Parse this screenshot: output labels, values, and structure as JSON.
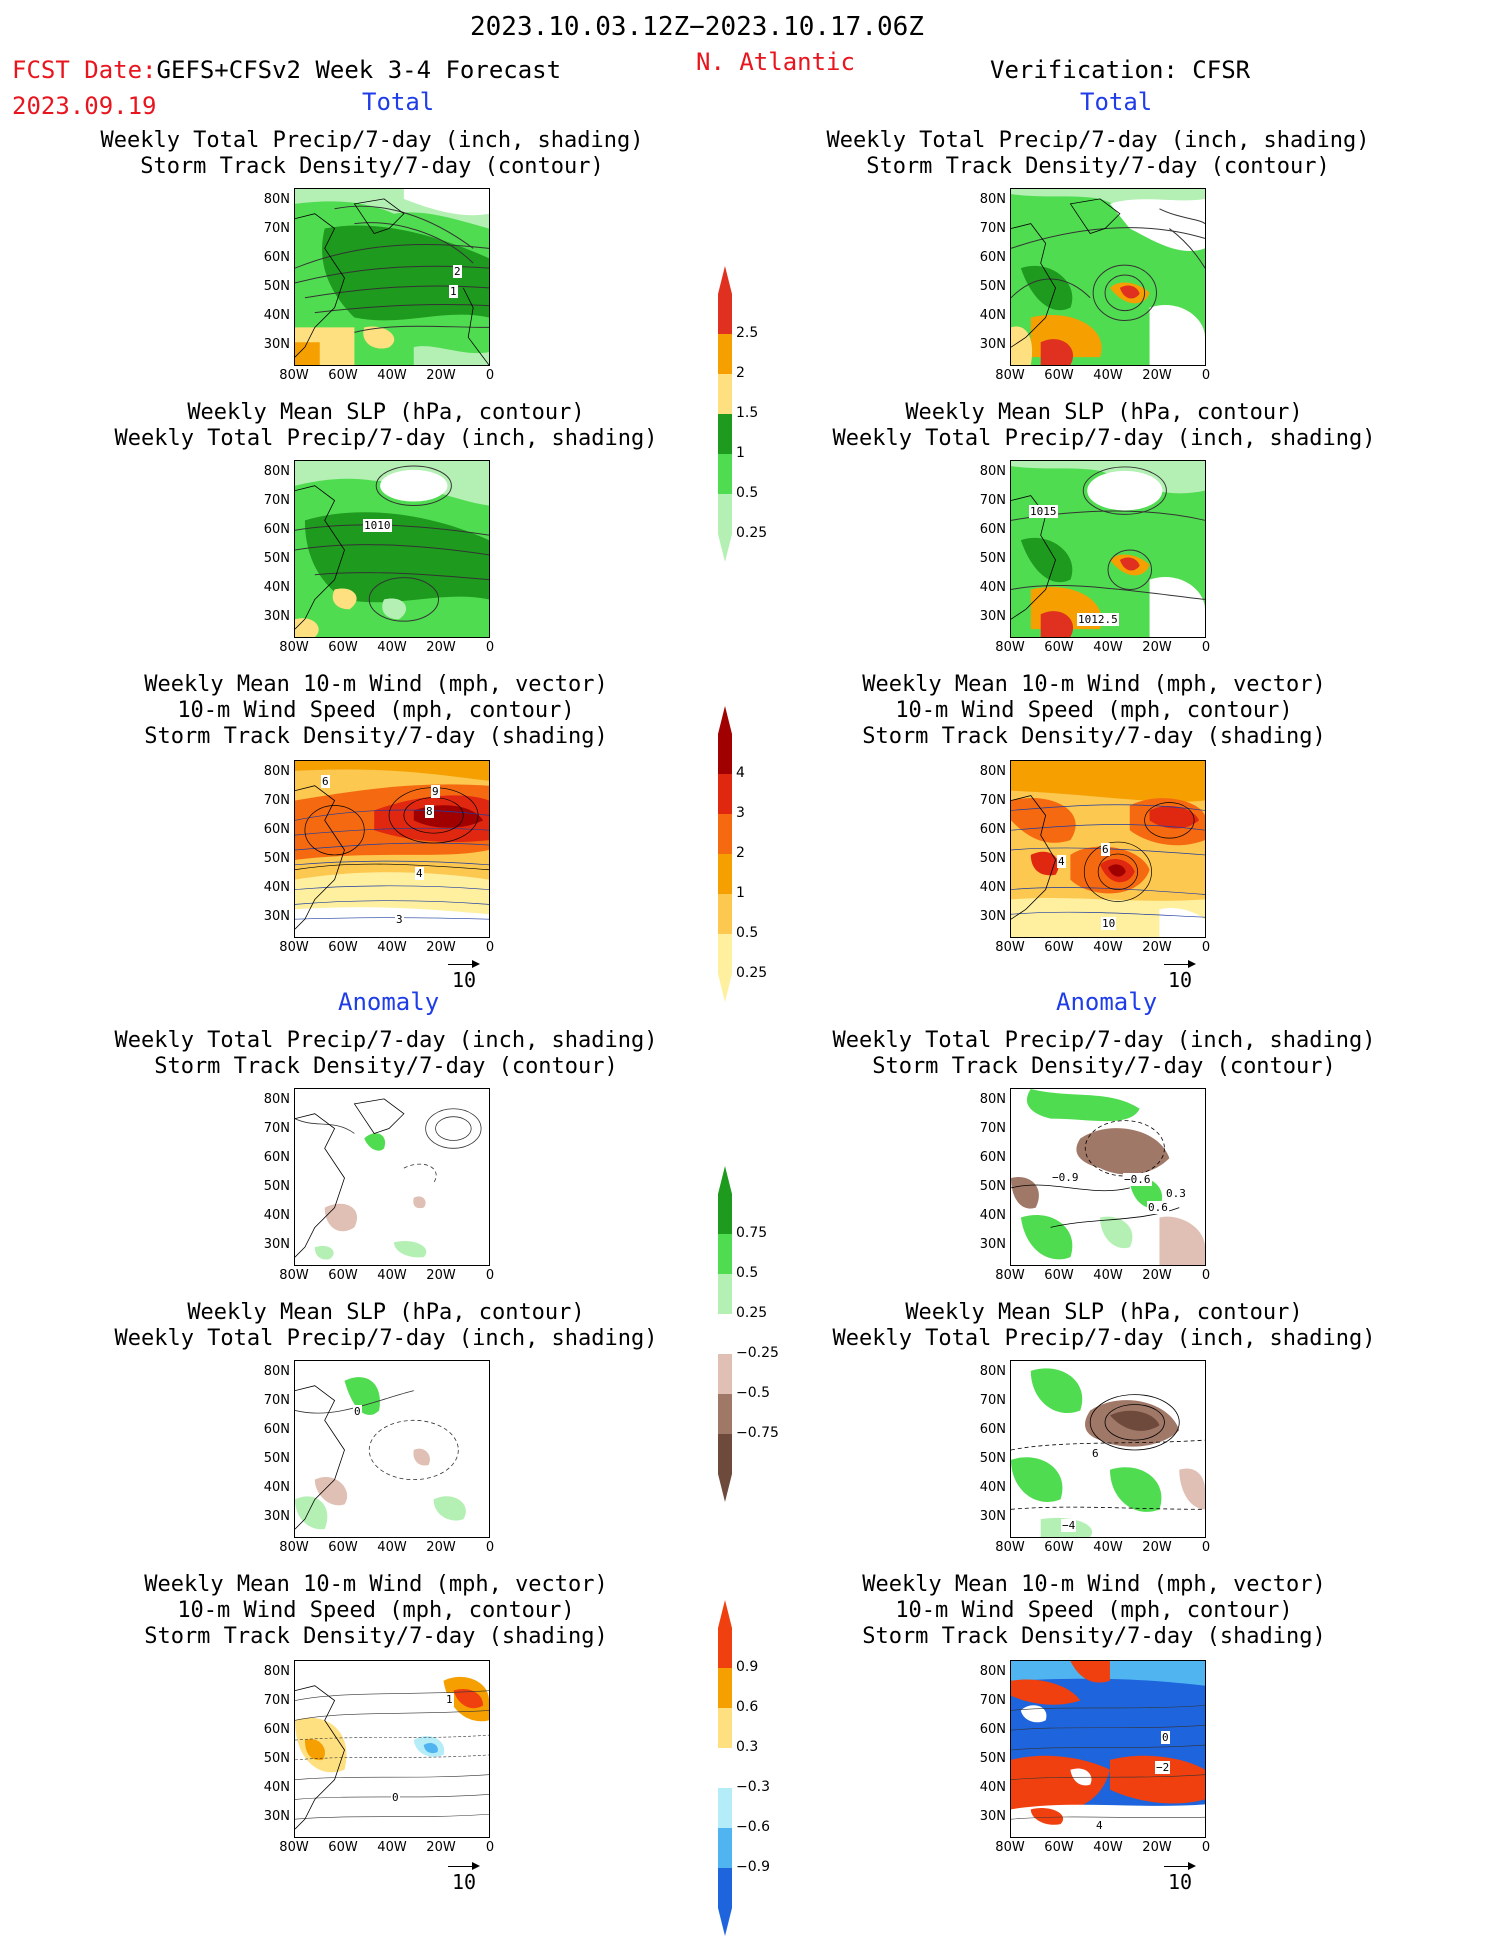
{
  "header": {
    "period": "2023.10.03.12Z−2023.10.17.06Z",
    "fcst_label": "FCST Date:",
    "fcst_model": "GEFS+CFSv2 Week 3-4 Forecast",
    "fcst_date": "2023.09.19",
    "region": "N. Atlantic",
    "verification": "Verification: CFSR"
  },
  "sections": {
    "total": "Total",
    "anomaly": "Anomaly"
  },
  "panel_titles": {
    "precip_storm": [
      "Weekly Total Precip/7-day (inch, shading)",
      "Storm Track Density/7-day (contour)"
    ],
    "slp_precip": [
      "Weekly Mean SLP (hPa, contour)",
      "Weekly Total Precip/7-day (inch, shading)"
    ],
    "wind_storm": [
      "Weekly Mean 10-m Wind (mph, vector)",
      "10-m Wind Speed (mph, contour)",
      "Storm Track Density/7-day (shading)"
    ]
  },
  "axes": {
    "lat_ticks": [
      "80N",
      "70N",
      "60N",
      "50N",
      "40N",
      "30N"
    ],
    "lon_ticks": [
      "80W",
      "60W",
      "40W",
      "20W",
      "0"
    ]
  },
  "vector_ref": "10",
  "colorbars": {
    "precip_total": {
      "labels": [
        "2.5",
        "2",
        "1.5",
        "1",
        "0.5",
        "0.25"
      ],
      "colors": [
        "#e03020",
        "#f5a000",
        "#ffe080",
        "#1e9a1e",
        "#50dc50",
        "#b4f0b4"
      ]
    },
    "storm_total": {
      "labels": [
        "4",
        "3",
        "2",
        "1",
        "0.5",
        "0.25"
      ],
      "colors": [
        "#a00000",
        "#e02810",
        "#f56a10",
        "#f5a000",
        "#fcc850",
        "#fff0a0"
      ]
    },
    "precip_anom": {
      "labels": [
        "0.75",
        "0.5",
        "0.25",
        "−0.25",
        "−0.5",
        "−0.75"
      ],
      "colors": [
        "#1e9a1e",
        "#50dc50",
        "#b4f0b4",
        "#ffffff",
        "#e0c0b4",
        "#a07868",
        "#6e4a3c"
      ]
    },
    "storm_anom": {
      "labels": [
        "0.9",
        "0.6",
        "0.3",
        "−0.3",
        "−0.6",
        "−0.9"
      ],
      "colors": [
        "#f04010",
        "#f5a000",
        "#ffe080",
        "#ffffff",
        "#b4ecf8",
        "#50b4f0",
        "#1e64dc"
      ]
    }
  },
  "contour_labels": {
    "fc_total_precip": [
      "2",
      "1"
    ],
    "fc_total_slp": [
      "1010"
    ],
    "fc_total_wind": [
      "6",
      "9",
      "8",
      "4",
      "3"
    ],
    "ver_total_slp": [
      "1015",
      "1012.5"
    ],
    "ver_total_wind": [
      "6",
      "4",
      "10"
    ],
    "ver_anom_precip": [
      "−0.9",
      "−0.6",
      "0.3",
      "0.6"
    ],
    "fc_anom_slp": [
      "0"
    ],
    "ver_anom_slp": [
      "6",
      "−4"
    ],
    "fc_anom_wind": [
      "1",
      "0"
    ],
    "ver_anom_wind": [
      "0",
      "−2",
      "4"
    ]
  },
  "colors": {
    "red_text": "#e8141e",
    "blue_text": "#1e3ce8"
  }
}
